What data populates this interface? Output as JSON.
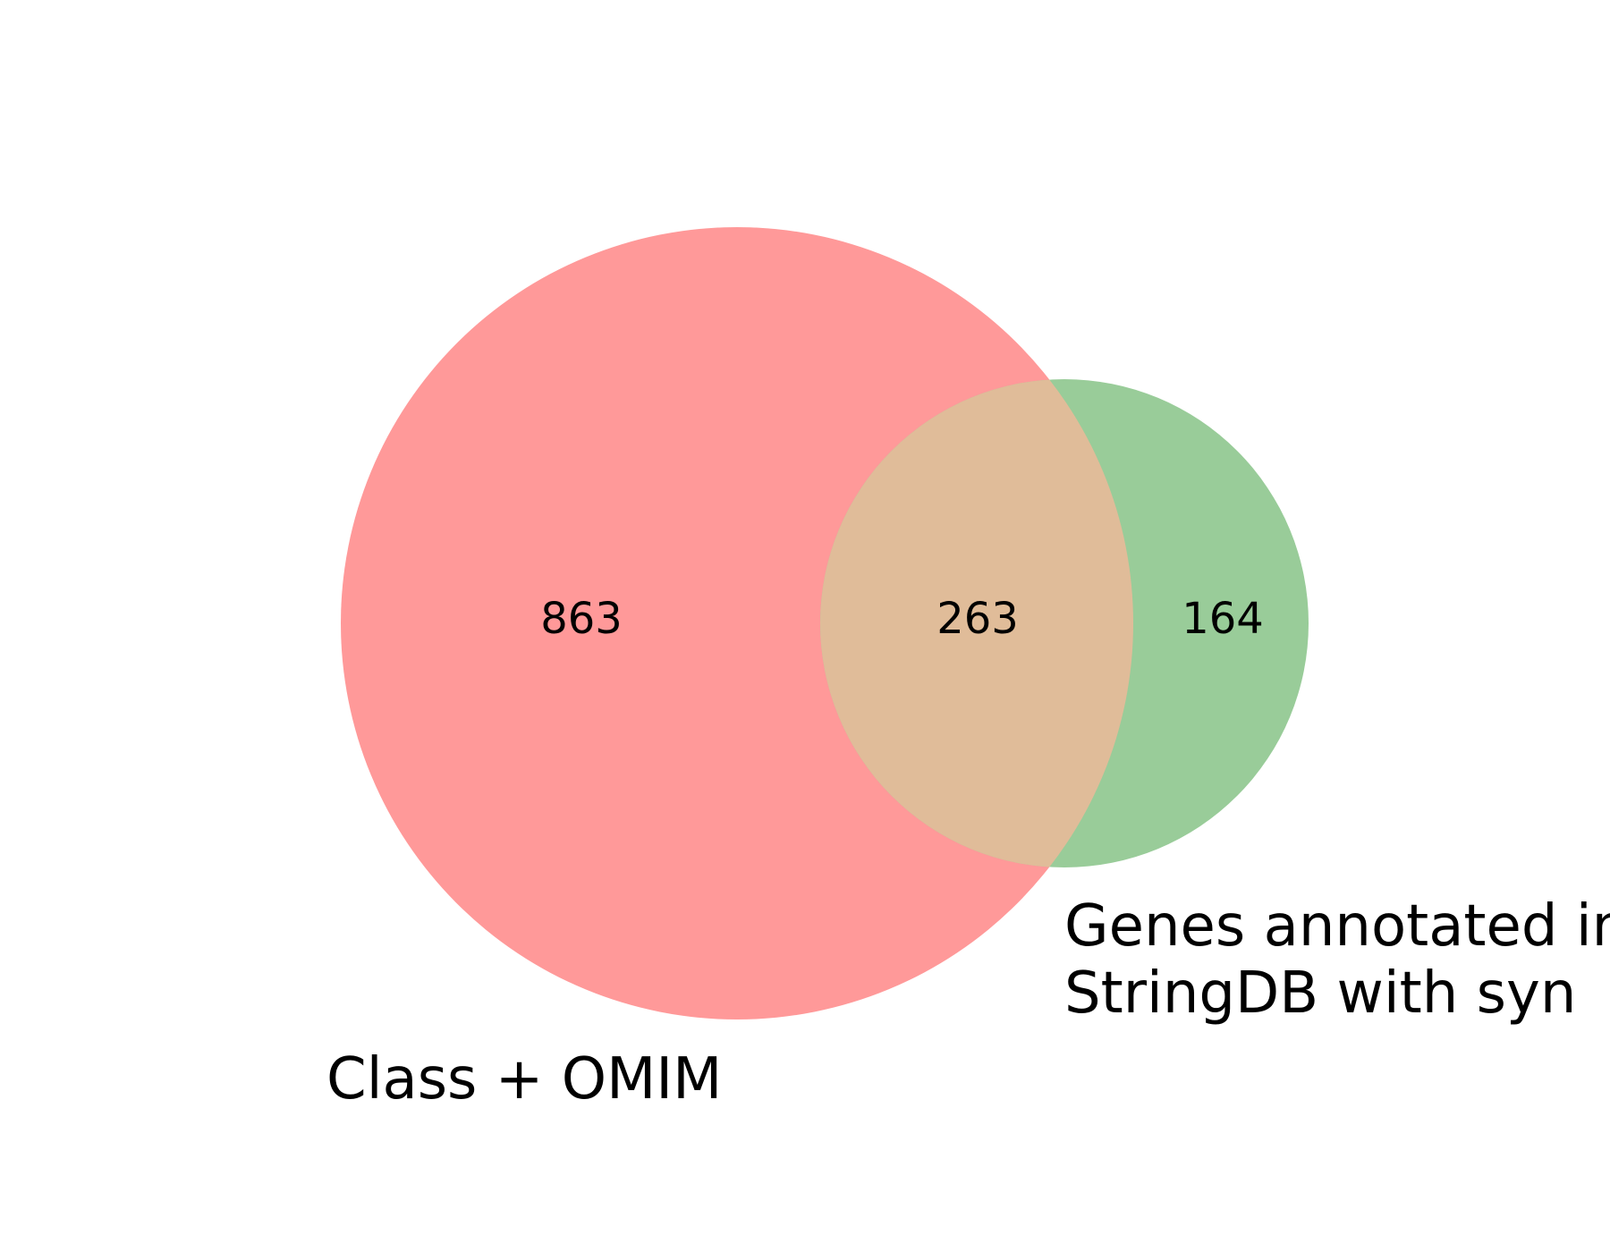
{
  "venn": {
    "sets": [
      {
        "label_lines": [
          "Class + OMIM"
        ],
        "color": "#ff9999"
      },
      {
        "label_lines": [
          "Genes annotated in",
          "StringDB with syn"
        ],
        "color": "#99cc99"
      }
    ],
    "overlap_color": "#e0bc99",
    "counts": {
      "only_a": "863",
      "both": "263",
      "only_b": "164"
    }
  }
}
